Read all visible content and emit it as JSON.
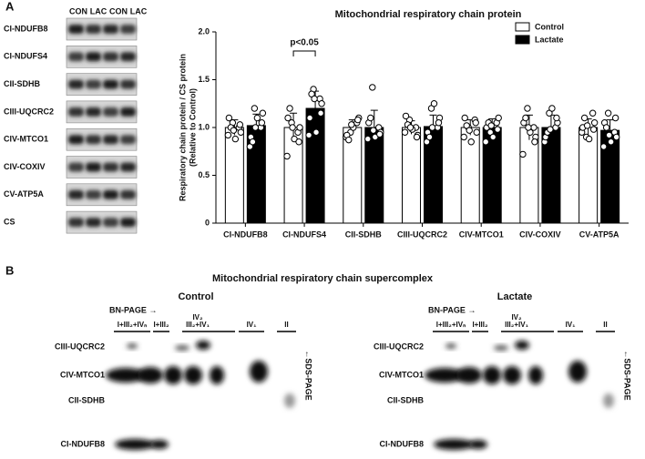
{
  "panel_a": {
    "label": "A",
    "lanes": [
      "CON",
      "LAC",
      "CON",
      "LAC"
    ],
    "proteins": [
      "CI-NDUFB8",
      "CI-NDUFS4",
      "CII-SDHB",
      "CIII-UQCRC2",
      "CIV-MTCO1",
      "CIV-COXIV",
      "CV-ATP5A",
      "CS"
    ]
  },
  "chart_data": {
    "type": "bar",
    "title": "Mitochondrial respiratory chain protein",
    "y_label": [
      "Respiratory chain protein / CS protein",
      "(Relative to Control)"
    ],
    "categories": [
      "CI-NDUFB8",
      "CI-NDUFS4",
      "CII-SDHB",
      "CIII-UQCRC2",
      "CIV-MTCO1",
      "CIV-COXIV",
      "CV-ATP5A"
    ],
    "series": [
      {
        "name": "Control",
        "color": "#ffffff",
        "values": [
          1.0,
          1.0,
          1.0,
          1.0,
          1.0,
          1.0,
          1.0
        ],
        "errors": [
          0.08,
          0.15,
          0.08,
          0.07,
          0.08,
          0.13,
          0.09
        ],
        "points": [
          [
            0.92,
            1.0,
            1.05,
            0.95,
            1.1,
            0.88,
            1.0,
            1.03,
            0.97
          ],
          [
            0.7,
            0.95,
            1.05,
            1.0,
            1.1,
            0.88,
            1.2,
            0.85,
            1.0
          ],
          [
            0.9,
            1.05,
            0.95,
            1.1,
            0.92,
            1.0,
            0.87,
            1.08,
            1.03
          ],
          [
            0.95,
            1.0,
            1.08,
            0.92,
            1.12,
            0.98,
            1.03,
            0.9,
            1.0
          ],
          [
            0.9,
            1.08,
            1.0,
            0.95,
            1.1,
            0.85,
            1.02,
            1.05,
            0.97
          ],
          [
            0.72,
            1.0,
            1.2,
            0.9,
            1.05,
            0.95,
            1.1,
            0.85,
            1.0
          ],
          [
            0.95,
            1.15,
            0.9,
            1.05,
            1.0,
            0.88,
            1.1,
            0.98,
            1.02
          ]
        ]
      },
      {
        "name": "Lactate",
        "color": "#000000",
        "values": [
          1.02,
          1.2,
          1.0,
          1.01,
          1.0,
          1.0,
          0.97
        ],
        "errors": [
          0.12,
          0.18,
          0.18,
          0.12,
          0.09,
          0.13,
          0.11
        ],
        "points": [
          [
            0.8,
            1.0,
            1.2,
            1.15,
            0.9,
            1.1,
            0.85,
            1.05,
            1.0
          ],
          [
            0.92,
            1.3,
            1.4,
            1.25,
            1.1,
            0.95,
            1.35,
            1.15,
            1.3
          ],
          [
            0.88,
            1.0,
            1.42,
            0.95,
            1.05,
            0.9,
            1.1,
            0.93,
            0.97
          ],
          [
            0.85,
            1.0,
            1.2,
            1.1,
            0.95,
            1.25,
            0.9,
            1.05,
            1.0
          ],
          [
            0.85,
            1.05,
            0.95,
            1.1,
            1.0,
            0.9,
            1.05,
            0.98,
            1.02
          ],
          [
            0.85,
            1.0,
            1.15,
            1.05,
            0.9,
            1.2,
            0.95,
            1.1,
            0.98
          ],
          [
            0.8,
            0.95,
            1.15,
            0.9,
            1.05,
            0.85,
            1.0,
            1.1,
            0.92
          ]
        ]
      }
    ],
    "ylim": [
      0,
      2.0
    ],
    "yticks": [
      0,
      0.5,
      {
        "value": 1.0,
        "label": "1.0"
      },
      1.5,
      {
        "value": 2.0,
        "label": "2.0"
      }
    ],
    "annotation": "p<0.05",
    "legend": "top-right"
  },
  "panel_b": {
    "label": "B",
    "title": "Mitochondrial respiratory chain supercomplex",
    "blots": [
      {
        "title": "Control",
        "direction_x": "BN-PAGE →",
        "direction_y": "←SDS-PAGE",
        "columns": [
          "I+III₂+IVₙ",
          "I+III₂",
          "IV₂",
          "III₂+IV₁",
          "IV₁",
          "II"
        ],
        "rows": [
          "CIII-UQCRC2",
          "CIV-MTCO1",
          "CII-SDHB",
          "CI-NDUFB8"
        ]
      },
      {
        "title": "Lactate",
        "direction_x": "BN-PAGE →",
        "direction_y": "←SDS-PAGE",
        "columns": [
          "I+III₂+IVₙ",
          "I+III₂",
          "IV₂",
          "III₂+IV₁",
          "IV₁",
          "II"
        ],
        "rows": [
          "CIII-UQCRC2",
          "CIV-MTCO1",
          "CII-SDHB",
          "CI-NDUFB8"
        ]
      }
    ]
  }
}
